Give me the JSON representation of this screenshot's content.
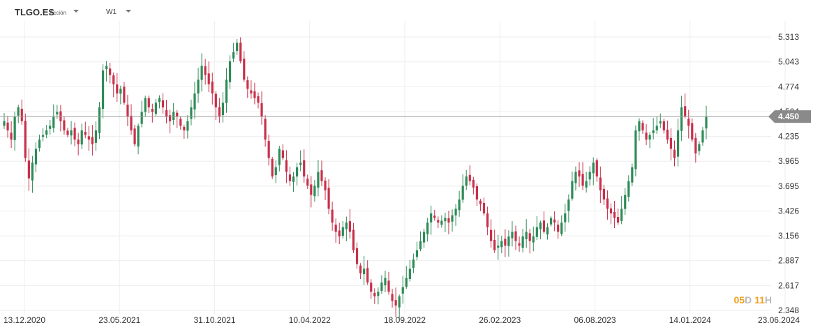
{
  "header": {
    "symbol": "TLGO.ES",
    "security_type": "Acción",
    "interval": "W1"
  },
  "countdown": {
    "days": "05",
    "days_unit": "D",
    "hours": "11",
    "hours_unit": "H"
  },
  "colors": {
    "up": "#2e8b57",
    "down": "#c8304a",
    "grid": "#eeeeee",
    "price_line": "#9e9e9e",
    "price_badge": "#8a8a8a"
  },
  "chart_data": {
    "type": "candlestick",
    "x_tick_labels": [
      "13.12.2020",
      "23.05.2021",
      "31.10.2021",
      "10.04.2022",
      "18.09.2022",
      "26.02.2023",
      "06.08.2023",
      "14.01.2024",
      "23.06.2024"
    ],
    "y_tick_labels": [
      "5.313",
      "5.043",
      "4.774",
      "4.504",
      "4.235",
      "3.965",
      "3.695",
      "3.426",
      "3.156",
      "2.887",
      "2.617",
      "2.348"
    ],
    "ylim": [
      2.348,
      5.313
    ],
    "y_ticks": [
      5.313,
      5.043,
      4.774,
      4.504,
      4.235,
      3.965,
      3.695,
      3.426,
      3.156,
      2.887,
      2.617,
      2.348
    ],
    "current_price": 4.45,
    "current_price_label": "4.450",
    "grid": true,
    "close_series": [
      4.4,
      4.3,
      4.2,
      4.45,
      4.55,
      4.4,
      4.0,
      3.78,
      3.95,
      4.1,
      4.2,
      4.25,
      4.3,
      4.35,
      4.45,
      4.5,
      4.4,
      4.3,
      4.25,
      4.3,
      4.2,
      4.15,
      4.3,
      4.25,
      4.2,
      4.15,
      4.3,
      4.55,
      4.95,
      5.0,
      4.9,
      4.8,
      4.7,
      4.75,
      4.6,
      4.45,
      4.3,
      4.15,
      4.35,
      4.5,
      4.65,
      4.55,
      4.5,
      4.6,
      4.65,
      4.55,
      4.45,
      4.4,
      4.5,
      4.45,
      4.35,
      4.3,
      4.4,
      4.55,
      4.7,
      4.85,
      5.0,
      4.9,
      4.8,
      4.7,
      4.55,
      4.45,
      4.6,
      4.85,
      5.05,
      5.15,
      5.25,
      5.05,
      4.85,
      4.75,
      4.7,
      4.65,
      4.6,
      4.45,
      4.2,
      4.0,
      3.8,
      3.9,
      4.1,
      4.0,
      3.85,
      3.75,
      3.8,
      3.9,
      3.95,
      3.8,
      3.7,
      3.6,
      3.7,
      3.85,
      3.75,
      3.65,
      3.45,
      3.3,
      3.2,
      3.15,
      3.25,
      3.3,
      3.2,
      3.0,
      2.85,
      2.75,
      2.8,
      2.65,
      2.55,
      2.5,
      2.55,
      2.65,
      2.7,
      2.55,
      2.45,
      2.4,
      2.5,
      2.6,
      2.7,
      2.8,
      2.9,
      3.0,
      3.1,
      3.2,
      3.3,
      3.4,
      3.35,
      3.3,
      3.32,
      3.35,
      3.3,
      3.38,
      3.45,
      3.55,
      3.7,
      3.8,
      3.75,
      3.68,
      3.55,
      3.5,
      3.4,
      3.25,
      3.1,
      3.0,
      3.05,
      3.1,
      3.05,
      3.15,
      3.2,
      3.1,
      3.05,
      3.15,
      3.2,
      3.1,
      3.15,
      3.25,
      3.3,
      3.2,
      3.25,
      3.35,
      3.3,
      3.2,
      3.3,
      3.4,
      3.55,
      3.75,
      3.85,
      3.8,
      3.7,
      3.75,
      3.85,
      3.95,
      3.8,
      3.65,
      3.55,
      3.45,
      3.4,
      3.35,
      3.3,
      3.45,
      3.6,
      3.75,
      3.9,
      4.3,
      4.4,
      4.3,
      4.2,
      4.25,
      4.3,
      4.35,
      4.4,
      4.3,
      4.2,
      4.1,
      4.0,
      4.3,
      4.55,
      4.45,
      4.35,
      4.2,
      4.05,
      4.15,
      4.3,
      4.45
    ]
  }
}
